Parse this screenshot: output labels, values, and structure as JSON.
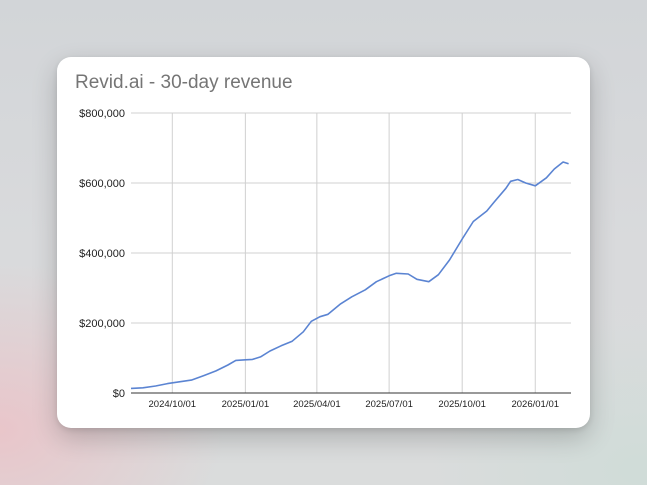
{
  "chart_data": {
    "type": "line",
    "title": "Revid.ai - 30-day revenue",
    "xlabel": "",
    "ylabel": "",
    "ylim": [
      0,
      800000
    ],
    "xlim": [
      "2024-08-10",
      "2026-02-15"
    ],
    "grid": true,
    "legend": "none",
    "y_ticks": [
      {
        "value": 0,
        "label": "$0"
      },
      {
        "value": 200000,
        "label": "$200,000"
      },
      {
        "value": 400000,
        "label": "$400,000"
      },
      {
        "value": 600000,
        "label": "$600,000"
      },
      {
        "value": 800000,
        "label": "$800,000"
      }
    ],
    "x_ticks": [
      {
        "value": "2024-10-01",
        "label": "2024/10/01"
      },
      {
        "value": "2025-01-01",
        "label": "2025/01/01"
      },
      {
        "value": "2025-04-01",
        "label": "2025/04/01"
      },
      {
        "value": "2025-07-01",
        "label": "2025/07/01"
      },
      {
        "value": "2025-10-01",
        "label": "2025/10/01"
      },
      {
        "value": "2026-01-01",
        "label": "2026/01/01"
      }
    ],
    "series": [
      {
        "name": "30-day revenue",
        "color": "#5b84d2",
        "points": [
          [
            "2024-08-10",
            13000
          ],
          [
            "2024-08-25",
            15000
          ],
          [
            "2024-09-10",
            20000
          ],
          [
            "2024-09-25",
            27000
          ],
          [
            "2024-10-10",
            32000
          ],
          [
            "2024-10-25",
            37000
          ],
          [
            "2024-11-10",
            50000
          ],
          [
            "2024-11-25",
            63000
          ],
          [
            "2024-12-10",
            80000
          ],
          [
            "2024-12-20",
            93000
          ],
          [
            "2025-01-01",
            95000
          ],
          [
            "2025-01-10",
            96000
          ],
          [
            "2025-01-20",
            103000
          ],
          [
            "2025-02-01",
            120000
          ],
          [
            "2025-02-15",
            135000
          ],
          [
            "2025-03-01",
            148000
          ],
          [
            "2025-03-15",
            175000
          ],
          [
            "2025-03-25",
            205000
          ],
          [
            "2025-04-05",
            218000
          ],
          [
            "2025-04-15",
            225000
          ],
          [
            "2025-05-01",
            255000
          ],
          [
            "2025-05-15",
            275000
          ],
          [
            "2025-06-01",
            295000
          ],
          [
            "2025-06-15",
            318000
          ],
          [
            "2025-07-01",
            335000
          ],
          [
            "2025-07-10",
            342000
          ],
          [
            "2025-07-25",
            340000
          ],
          [
            "2025-08-05",
            325000
          ],
          [
            "2025-08-20",
            318000
          ],
          [
            "2025-09-01",
            338000
          ],
          [
            "2025-09-15",
            380000
          ],
          [
            "2025-10-01",
            440000
          ],
          [
            "2025-10-15",
            490000
          ],
          [
            "2025-11-01",
            520000
          ],
          [
            "2025-11-10",
            545000
          ],
          [
            "2025-11-25",
            585000
          ],
          [
            "2025-12-01",
            605000
          ],
          [
            "2025-12-10",
            610000
          ],
          [
            "2025-12-20",
            600000
          ],
          [
            "2026-01-01",
            592000
          ],
          [
            "2026-01-15",
            615000
          ],
          [
            "2026-01-25",
            640000
          ],
          [
            "2026-02-05",
            660000
          ],
          [
            "2026-02-12",
            655000
          ]
        ]
      }
    ]
  }
}
